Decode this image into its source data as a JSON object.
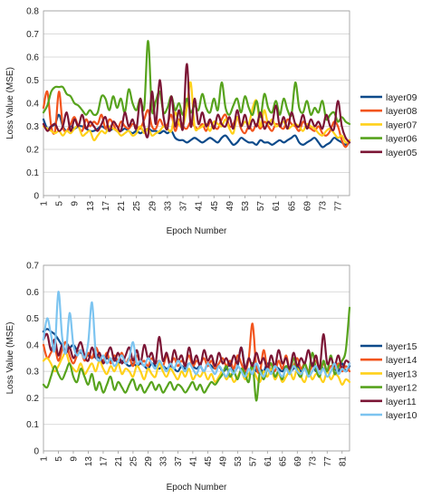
{
  "chart_data": [
    {
      "type": "line",
      "xlabel": "Epoch Number",
      "ylabel": "Loss Value (MSE)",
      "ylim": [
        0,
        0.8
      ],
      "yticks": [
        "0",
        "0.1",
        "0.2",
        "0.3",
        "0.4",
        "0.5",
        "0.6",
        "0.7",
        "0.8"
      ],
      "xticks": [
        "1",
        "5",
        "9",
        "13",
        "17",
        "21",
        "25",
        "29",
        "33",
        "37",
        "41",
        "45",
        "49",
        "53",
        "57",
        "61",
        "65",
        "69",
        "73",
        "77"
      ],
      "xrange": [
        1,
        80
      ],
      "grid": "horizontal",
      "legend_position": "right",
      "series": [
        {
          "name": "layer09",
          "color": "#0d4a8a",
          "values": [
            0.33,
            0.29,
            0.3,
            0.31,
            0.35,
            0.3,
            0.28,
            0.3,
            0.29,
            0.3,
            0.3,
            0.29,
            0.28,
            0.28,
            0.29,
            0.3,
            0.29,
            0.28,
            0.29,
            0.28,
            0.28,
            0.29,
            0.28,
            0.27,
            0.28,
            0.27,
            0.28,
            0.29,
            0.28,
            0.28,
            0.27,
            0.28,
            0.27,
            0.28,
            0.25,
            0.24,
            0.24,
            0.23,
            0.24,
            0.25,
            0.24,
            0.23,
            0.24,
            0.25,
            0.24,
            0.23,
            0.25,
            0.26,
            0.24,
            0.22,
            0.23,
            0.25,
            0.24,
            0.23,
            0.23,
            0.22,
            0.24,
            0.23,
            0.23,
            0.22,
            0.23,
            0.24,
            0.23,
            0.24,
            0.25,
            0.26,
            0.23,
            0.22,
            0.23,
            0.24,
            0.25,
            0.23,
            0.21,
            0.22,
            0.23,
            0.25,
            0.24,
            0.23,
            0.22,
            0.23
          ]
        },
        {
          "name": "layer08",
          "color": "#f2541d",
          "values": [
            0.38,
            0.45,
            0.3,
            0.28,
            0.45,
            0.3,
            0.28,
            0.31,
            0.34,
            0.3,
            0.28,
            0.33,
            0.3,
            0.32,
            0.31,
            0.35,
            0.29,
            0.33,
            0.31,
            0.28,
            0.32,
            0.3,
            0.29,
            0.31,
            0.3,
            0.29,
            0.33,
            0.37,
            0.3,
            0.29,
            0.33,
            0.3,
            0.31,
            0.35,
            0.28,
            0.33,
            0.3,
            0.29,
            0.32,
            0.3,
            0.29,
            0.31,
            0.28,
            0.32,
            0.3,
            0.29,
            0.33,
            0.35,
            0.3,
            0.31,
            0.34,
            0.29,
            0.27,
            0.3,
            0.28,
            0.31,
            0.29,
            0.32,
            0.3,
            0.28,
            0.31,
            0.3,
            0.29,
            0.33,
            0.31,
            0.3,
            0.28,
            0.32,
            0.3,
            0.29,
            0.28,
            0.3,
            0.27,
            0.26,
            0.28,
            0.32,
            0.3,
            0.24,
            0.21,
            0.24
          ]
        },
        {
          "name": "layer07",
          "color": "#ffd11a",
          "values": [
            0.3,
            0.29,
            0.28,
            0.27,
            0.28,
            0.26,
            0.28,
            0.27,
            0.29,
            0.3,
            0.26,
            0.27,
            0.28,
            0.24,
            0.26,
            0.28,
            0.27,
            0.3,
            0.29,
            0.28,
            0.26,
            0.27,
            0.28,
            0.26,
            0.27,
            0.3,
            0.27,
            0.29,
            0.26,
            0.27,
            0.28,
            0.3,
            0.29,
            0.28,
            0.36,
            0.31,
            0.3,
            0.38,
            0.49,
            0.3,
            0.29,
            0.3,
            0.31,
            0.28,
            0.32,
            0.31,
            0.3,
            0.33,
            0.29,
            0.27,
            0.34,
            0.3,
            0.32,
            0.31,
            0.38,
            0.41,
            0.3,
            0.37,
            0.31,
            0.33,
            0.3,
            0.31,
            0.32,
            0.29,
            0.3,
            0.31,
            0.3,
            0.28,
            0.31,
            0.3,
            0.29,
            0.27,
            0.26,
            0.28,
            0.29,
            0.27,
            0.25,
            0.26,
            0.23,
            0.24
          ]
        },
        {
          "name": "layer06",
          "color": "#57a31d",
          "values": [
            0.36,
            0.39,
            0.45,
            0.47,
            0.47,
            0.47,
            0.44,
            0.43,
            0.4,
            0.39,
            0.37,
            0.35,
            0.37,
            0.35,
            0.36,
            0.43,
            0.42,
            0.37,
            0.43,
            0.38,
            0.42,
            0.36,
            0.46,
            0.4,
            0.37,
            0.42,
            0.38,
            0.67,
            0.37,
            0.41,
            0.45,
            0.36,
            0.38,
            0.43,
            0.37,
            0.4,
            0.35,
            0.42,
            0.36,
            0.39,
            0.37,
            0.44,
            0.38,
            0.36,
            0.42,
            0.37,
            0.49,
            0.38,
            0.35,
            0.39,
            0.42,
            0.36,
            0.43,
            0.38,
            0.35,
            0.41,
            0.34,
            0.44,
            0.38,
            0.36,
            0.41,
            0.35,
            0.42,
            0.37,
            0.35,
            0.49,
            0.38,
            0.36,
            0.41,
            0.35,
            0.38,
            0.36,
            0.41,
            0.33,
            0.35,
            0.36,
            0.32,
            0.34,
            0.32,
            0.31
          ]
        },
        {
          "name": "layer05",
          "color": "#7b1535",
          "values": [
            0.31,
            0.28,
            0.3,
            0.31,
            0.28,
            0.3,
            0.36,
            0.28,
            0.33,
            0.3,
            0.35,
            0.29,
            0.32,
            0.3,
            0.28,
            0.31,
            0.34,
            0.28,
            0.32,
            0.3,
            0.28,
            0.36,
            0.3,
            0.33,
            0.29,
            0.42,
            0.3,
            0.26,
            0.45,
            0.31,
            0.5,
            0.34,
            0.29,
            0.43,
            0.3,
            0.37,
            0.29,
            0.57,
            0.3,
            0.42,
            0.31,
            0.36,
            0.3,
            0.33,
            0.29,
            0.35,
            0.31,
            0.3,
            0.34,
            0.29,
            0.37,
            0.3,
            0.35,
            0.29,
            0.33,
            0.3,
            0.36,
            0.29,
            0.32,
            0.31,
            0.39,
            0.3,
            0.34,
            0.29,
            0.36,
            0.31,
            0.3,
            0.35,
            0.29,
            0.33,
            0.3,
            0.32,
            0.29,
            0.35,
            0.3,
            0.29,
            0.41,
            0.3,
            0.25,
            0.23
          ]
        }
      ]
    },
    {
      "type": "line",
      "xlabel": "Epoch Number",
      "ylabel": "Loss Value (MSE)",
      "ylim": [
        0,
        0.7
      ],
      "yticks": [
        "0",
        "0.1",
        "0.2",
        "0.3",
        "0.4",
        "0.5",
        "0.6",
        "0.7"
      ],
      "xticks": [
        "1",
        "5",
        "9",
        "13",
        "17",
        "21",
        "25",
        "29",
        "33",
        "37",
        "41",
        "45",
        "49",
        "53",
        "57",
        "61",
        "65",
        "69",
        "73",
        "77",
        "81"
      ],
      "xrange": [
        1,
        83
      ],
      "grid": "horizontal",
      "legend_position": "right",
      "series": [
        {
          "name": "layer15",
          "color": "#0d4a8a",
          "values": [
            0.45,
            0.46,
            0.45,
            0.44,
            0.42,
            0.4,
            0.41,
            0.39,
            0.4,
            0.38,
            0.37,
            0.36,
            0.36,
            0.35,
            0.36,
            0.35,
            0.34,
            0.35,
            0.34,
            0.35,
            0.33,
            0.34,
            0.33,
            0.32,
            0.33,
            0.32,
            0.33,
            0.32,
            0.31,
            0.33,
            0.32,
            0.31,
            0.32,
            0.31,
            0.32,
            0.31,
            0.3,
            0.32,
            0.31,
            0.33,
            0.32,
            0.31,
            0.32,
            0.3,
            0.33,
            0.32,
            0.31,
            0.32,
            0.3,
            0.31,
            0.33,
            0.3,
            0.32,
            0.39,
            0.31,
            0.29,
            0.32,
            0.3,
            0.31,
            0.3,
            0.33,
            0.3,
            0.32,
            0.31,
            0.3,
            0.32,
            0.3,
            0.31,
            0.32,
            0.3,
            0.31,
            0.29,
            0.33,
            0.3,
            0.32,
            0.31,
            0.3,
            0.32,
            0.31,
            0.3,
            0.33,
            0.3,
            0.32
          ]
        },
        {
          "name": "layer14",
          "color": "#f2541d",
          "values": [
            0.4,
            0.35,
            0.37,
            0.39,
            0.34,
            0.38,
            0.41,
            0.36,
            0.33,
            0.36,
            0.38,
            0.34,
            0.37,
            0.35,
            0.39,
            0.36,
            0.34,
            0.37,
            0.33,
            0.36,
            0.34,
            0.37,
            0.33,
            0.35,
            0.32,
            0.36,
            0.33,
            0.34,
            0.32,
            0.35,
            0.33,
            0.34,
            0.32,
            0.36,
            0.33,
            0.35,
            0.32,
            0.34,
            0.33,
            0.36,
            0.32,
            0.34,
            0.33,
            0.35,
            0.32,
            0.34,
            0.31,
            0.33,
            0.35,
            0.32,
            0.34,
            0.31,
            0.36,
            0.33,
            0.3,
            0.35,
            0.48,
            0.32,
            0.3,
            0.38,
            0.31,
            0.33,
            0.3,
            0.34,
            0.31,
            0.36,
            0.3,
            0.32,
            0.35,
            0.31,
            0.33,
            0.3,
            0.32,
            0.34,
            0.31,
            0.33,
            0.3,
            0.32,
            0.31,
            0.33,
            0.3,
            0.32,
            0.3
          ]
        },
        {
          "name": "layer13",
          "color": "#ffd11a",
          "values": [
            0.34,
            0.35,
            0.33,
            0.3,
            0.32,
            0.35,
            0.37,
            0.33,
            0.31,
            0.3,
            0.33,
            0.29,
            0.31,
            0.33,
            0.3,
            0.34,
            0.31,
            0.29,
            0.32,
            0.3,
            0.33,
            0.29,
            0.31,
            0.3,
            0.28,
            0.32,
            0.3,
            0.27,
            0.31,
            0.29,
            0.28,
            0.33,
            0.3,
            0.28,
            0.31,
            0.29,
            0.27,
            0.3,
            0.28,
            0.31,
            0.27,
            0.29,
            0.28,
            0.3,
            0.27,
            0.29,
            0.26,
            0.28,
            0.3,
            0.27,
            0.29,
            0.26,
            0.28,
            0.3,
            0.27,
            0.29,
            0.31,
            0.28,
            0.26,
            0.3,
            0.28,
            0.31,
            0.27,
            0.29,
            0.26,
            0.28,
            0.3,
            0.27,
            0.31,
            0.28,
            0.26,
            0.3,
            0.27,
            0.29,
            0.28,
            0.26,
            0.3,
            0.27,
            0.29,
            0.28,
            0.25,
            0.27,
            0.26
          ]
        },
        {
          "name": "layer12",
          "color": "#57a31d",
          "values": [
            0.25,
            0.24,
            0.28,
            0.32,
            0.29,
            0.27,
            0.3,
            0.33,
            0.28,
            0.26,
            0.31,
            0.28,
            0.25,
            0.29,
            0.23,
            0.26,
            0.22,
            0.25,
            0.28,
            0.23,
            0.26,
            0.24,
            0.22,
            0.25,
            0.27,
            0.23,
            0.25,
            0.22,
            0.24,
            0.26,
            0.23,
            0.25,
            0.22,
            0.24,
            0.26,
            0.23,
            0.25,
            0.24,
            0.22,
            0.24,
            0.26,
            0.23,
            0.25,
            0.22,
            0.24,
            0.26,
            0.25,
            0.27,
            0.29,
            0.32,
            0.28,
            0.3,
            0.27,
            0.31,
            0.29,
            0.26,
            0.33,
            0.19,
            0.3,
            0.27,
            0.31,
            0.33,
            0.28,
            0.3,
            0.27,
            0.32,
            0.29,
            0.35,
            0.3,
            0.28,
            0.33,
            0.29,
            0.37,
            0.31,
            0.28,
            0.34,
            0.3,
            0.36,
            0.29,
            0.32,
            0.34,
            0.38,
            0.54
          ]
        },
        {
          "name": "layer11",
          "color": "#7b1535",
          "values": [
            0.42,
            0.44,
            0.38,
            0.42,
            0.36,
            0.4,
            0.37,
            0.39,
            0.35,
            0.38,
            0.41,
            0.36,
            0.34,
            0.39,
            0.35,
            0.37,
            0.33,
            0.36,
            0.39,
            0.34,
            0.37,
            0.33,
            0.36,
            0.39,
            0.34,
            0.38,
            0.33,
            0.4,
            0.35,
            0.37,
            0.33,
            0.43,
            0.34,
            0.37,
            0.32,
            0.38,
            0.34,
            0.36,
            0.32,
            0.39,
            0.33,
            0.36,
            0.32,
            0.38,
            0.34,
            0.36,
            0.32,
            0.37,
            0.33,
            0.35,
            0.32,
            0.36,
            0.33,
            0.39,
            0.31,
            0.35,
            0.32,
            0.37,
            0.33,
            0.35,
            0.31,
            0.36,
            0.32,
            0.38,
            0.33,
            0.35,
            0.31,
            0.37,
            0.32,
            0.35,
            0.33,
            0.38,
            0.32,
            0.36,
            0.31,
            0.44,
            0.33,
            0.35,
            0.32,
            0.36,
            0.31,
            0.34,
            0.33
          ]
        },
        {
          "name": "layer10",
          "color": "#7cc4f0",
          "values": [
            0.42,
            0.5,
            0.44,
            0.38,
            0.6,
            0.43,
            0.37,
            0.52,
            0.4,
            0.36,
            0.38,
            0.35,
            0.41,
            0.56,
            0.37,
            0.34,
            0.36,
            0.33,
            0.35,
            0.32,
            0.34,
            0.36,
            0.33,
            0.35,
            0.41,
            0.33,
            0.34,
            0.32,
            0.35,
            0.33,
            0.31,
            0.34,
            0.32,
            0.3,
            0.33,
            0.31,
            0.34,
            0.32,
            0.3,
            0.33,
            0.31,
            0.29,
            0.32,
            0.3,
            0.33,
            0.31,
            0.29,
            0.32,
            0.3,
            0.28,
            0.31,
            0.29,
            0.32,
            0.3,
            0.28,
            0.31,
            0.29,
            0.33,
            0.3,
            0.28,
            0.31,
            0.29,
            0.32,
            0.3,
            0.28,
            0.31,
            0.29,
            0.32,
            0.3,
            0.29,
            0.31,
            0.28,
            0.3,
            0.32,
            0.29,
            0.31,
            0.28,
            0.3,
            0.33,
            0.29,
            0.31,
            0.3,
            0.33
          ]
        }
      ]
    }
  ]
}
